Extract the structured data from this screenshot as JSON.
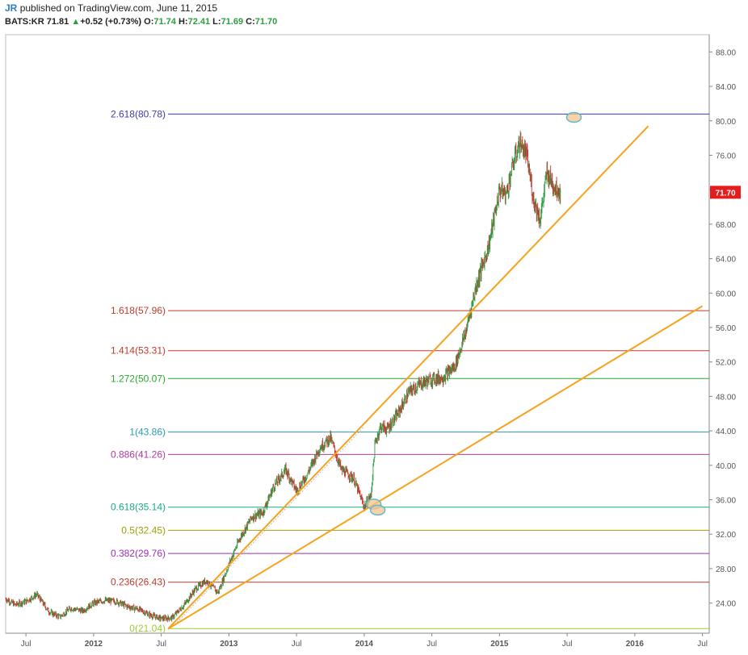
{
  "header": {
    "author": "JR",
    "published": "published on TradingView.com, June 11, 2015",
    "symbol": "BATS:KR",
    "last": "71.81",
    "change": "+0.52 (+0.73%)",
    "open_label": "O:",
    "open": "71.74",
    "high_label": "H:",
    "high": "72.41",
    "low_label": "L:",
    "low": "71.69",
    "close_label": "C:",
    "close": "71.70"
  },
  "chart_data": {
    "type": "line",
    "title": "",
    "xlabel": "",
    "ylabel": "",
    "ylim": [
      20.5,
      90
    ],
    "xlim": [
      2011.35,
      2016.55
    ],
    "y_ticks": [
      24,
      28,
      32,
      36,
      40,
      44,
      48,
      52,
      56,
      60,
      64,
      68,
      72,
      76,
      80,
      84,
      88
    ],
    "y_tick_labels": [
      "24.00",
      "28.00",
      "32.00",
      "36.00",
      "40.00",
      "44.00",
      "48.00",
      "52.00",
      "56.00",
      "60.00",
      "64.00",
      "68.00",
      "72.00",
      "76.00",
      "80.00",
      "84.00",
      "88.00"
    ],
    "x_ticks": [
      {
        "label": "Jul",
        "x": 2011.5
      },
      {
        "label": "2012",
        "x": 2012.0
      },
      {
        "label": "Jul",
        "x": 2012.5
      },
      {
        "label": "2013",
        "x": 2013.0
      },
      {
        "label": "Jul",
        "x": 2013.5
      },
      {
        "label": "2014",
        "x": 2014.0
      },
      {
        "label": "Jul",
        "x": 2014.5
      },
      {
        "label": "2015",
        "x": 2015.0
      },
      {
        "label": "Jul",
        "x": 2015.5
      },
      {
        "label": "2016",
        "x": 2016.0
      },
      {
        "label": "Jul",
        "x": 2016.5
      }
    ],
    "last_price_label": "71.70",
    "last_price": 71.7,
    "colors": {
      "up": "#2e9d41",
      "down": "#d02f2f",
      "trend": "#f7a21b",
      "marker_fill": "#f7c48a",
      "marker_edge": "#5bb8d6"
    },
    "fib_levels": [
      {
        "ratio": "0",
        "value": 21.04,
        "label": "0(21.04)",
        "color": "#9acd32"
      },
      {
        "ratio": "0.236",
        "value": 26.43,
        "label": "0.236(26.43)",
        "color": "#c0392b"
      },
      {
        "ratio": "0.382",
        "value": 29.76,
        "label": "0.382(29.76)",
        "color": "#9b30b8"
      },
      {
        "ratio": "0.5",
        "value": 32.45,
        "label": "0.5(32.45)",
        "color": "#a0a000"
      },
      {
        "ratio": "0.618",
        "value": 35.14,
        "label": "0.618(35.14)",
        "color": "#1aaa8a"
      },
      {
        "ratio": "0.886",
        "value": 41.26,
        "label": "0.886(41.26)",
        "color": "#b03a9c"
      },
      {
        "ratio": "1",
        "value": 43.86,
        "label": "1(43.86)",
        "color": "#2a9ab0"
      },
      {
        "ratio": "1.272",
        "value": 50.07,
        "label": "1.272(50.07)",
        "color": "#2ca52c"
      },
      {
        "ratio": "1.414",
        "value": 53.31,
        "label": "1.414(53.31)",
        "color": "#c0392b"
      },
      {
        "ratio": "1.618",
        "value": 57.96,
        "label": "1.618(57.96)",
        "color": "#c0392b"
      },
      {
        "ratio": "2.618",
        "value": 80.78,
        "label": "2.618(80.78)",
        "color": "#3d3daa"
      }
    ],
    "trend_lines": [
      {
        "from": [
          2012.55,
          21.0
        ],
        "to": [
          2016.1,
          79.4
        ]
      },
      {
        "from": [
          2012.55,
          21.0
        ],
        "to": [
          2016.5,
          58.5
        ]
      }
    ],
    "markers": [
      {
        "x": 2014.07,
        "y": 35.5
      },
      {
        "x": 2014.1,
        "y": 34.8
      },
      {
        "x": 2015.55,
        "y": 80.4
      }
    ],
    "series": [
      {
        "x": [
          2011.35,
          2011.42,
          2011.5,
          2011.58,
          2011.67,
          2011.75,
          2011.83,
          2011.92,
          2012.0,
          2012.08,
          2012.17,
          2012.25,
          2012.33,
          2012.42,
          2012.5,
          2012.58,
          2012.67,
          2012.75,
          2012.83,
          2012.92,
          2013.0,
          2013.08,
          2013.17,
          2013.25,
          2013.33,
          2013.42,
          2013.5,
          2013.58,
          2013.67,
          2013.75,
          2013.83,
          2013.92,
          2014.0,
          2014.05,
          2014.08,
          2014.12,
          2014.17,
          2014.25,
          2014.33,
          2014.42,
          2014.5,
          2014.58,
          2014.67,
          2014.75,
          2014.83,
          2014.92,
          2015.0,
          2015.05,
          2015.1,
          2015.15,
          2015.2,
          2015.25,
          2015.3,
          2015.35,
          2015.4,
          2015.45
        ],
        "values": [
          24.5,
          23.8,
          24.2,
          25.0,
          23.0,
          22.4,
          23.4,
          23.1,
          24.0,
          24.3,
          24.2,
          23.6,
          23.3,
          22.6,
          22.2,
          22.3,
          23.8,
          25.6,
          26.6,
          25.2,
          28.5,
          31.5,
          34.0,
          34.5,
          37.5,
          39.5,
          37.0,
          39.0,
          42.0,
          43.2,
          39.5,
          38.5,
          35.2,
          36.5,
          42.5,
          44.5,
          44.2,
          46.0,
          48.5,
          49.5,
          50.0,
          50.2,
          51.5,
          55.5,
          61.0,
          65.5,
          72.0,
          71.5,
          75.0,
          77.5,
          76.0,
          71.0,
          68.5,
          74.0,
          72.5,
          71.7
        ]
      }
    ]
  }
}
